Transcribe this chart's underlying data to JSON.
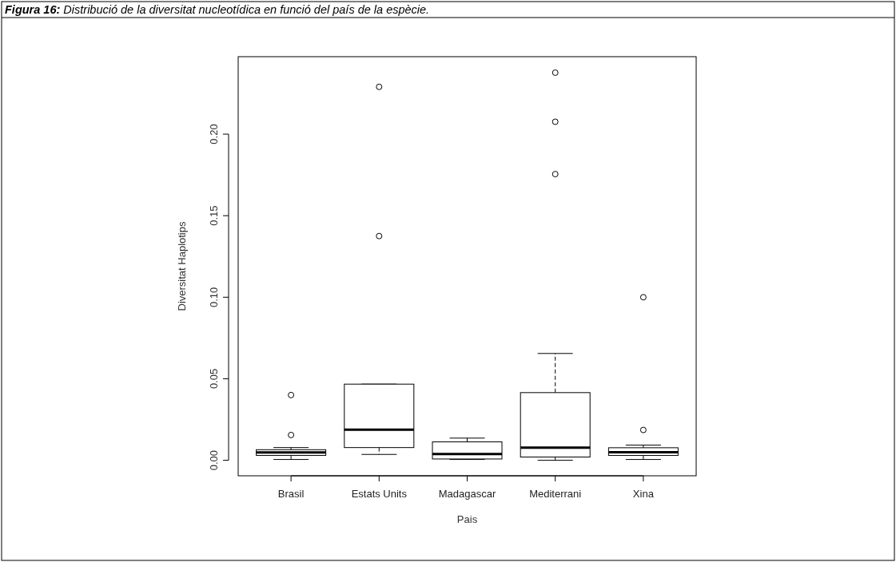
{
  "chart_data": {
    "type": "box",
    "title": "Figura 16: Distribució de la diversitat nucleotídica en funció del país de la espècie.",
    "xlabel": "Pais",
    "ylabel": "Diversitat Haplotips",
    "categories": [
      "Brasil",
      "Estats Units",
      "Madagascar",
      "Mediterrani",
      "Xina"
    ],
    "boxes": [
      {
        "low": 0.0005,
        "q1": 0.003,
        "median": 0.0048,
        "q3": 0.0065,
        "high": 0.0078,
        "outliers": [
          0.0155,
          0.04
        ]
      },
      {
        "low": 0.0036,
        "q1": 0.0078,
        "median": 0.0188,
        "q3": 0.0467,
        "high": 0.0467,
        "outliers": [
          0.1375,
          0.229
        ]
      },
      {
        "low": 0.0005,
        "q1": 0.0008,
        "median": 0.0038,
        "q3": 0.0113,
        "high": 0.0136
      },
      {
        "low": 0.0,
        "q1": 0.002,
        "median": 0.0077,
        "q3": 0.0415,
        "high": 0.0655,
        "outliers": [
          0.1755,
          0.2076,
          0.2377
        ]
      },
      {
        "low": 0.0005,
        "q1": 0.003,
        "median": 0.005,
        "q3": 0.0077,
        "high": 0.0093,
        "outliers": [
          0.0186,
          0.1
        ]
      }
    ],
    "ylim": [
      -0.0095,
      0.2475
    ],
    "yticks": [
      {
        "value": 0,
        "label": "0.00"
      },
      {
        "value": 0.05,
        "label": "0.05"
      },
      {
        "value": 0.1,
        "label": "0.10"
      },
      {
        "value": 0.15,
        "label": "0.15"
      },
      {
        "value": 0.2,
        "label": "0.20"
      }
    ],
    "color": "#000000"
  }
}
